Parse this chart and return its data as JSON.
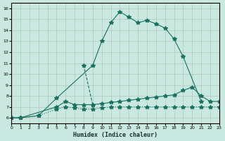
{
  "xlabel": "Humidex (Indice chaleur)",
  "bg_color": "#c8e8e0",
  "grid_color": "#b0c8c0",
  "line_color": "#1a7060",
  "xlim": [
    0,
    23
  ],
  "ylim": [
    5.5,
    16.5
  ],
  "xticks": [
    0,
    1,
    2,
    3,
    4,
    5,
    6,
    7,
    8,
    9,
    10,
    11,
    12,
    13,
    14,
    15,
    16,
    17,
    18,
    19,
    20,
    21,
    22,
    23
  ],
  "yticks": [
    6,
    7,
    8,
    9,
    10,
    11,
    12,
    13,
    14,
    15,
    16
  ],
  "line1_x": [
    0,
    1,
    3,
    5,
    9,
    10,
    11,
    12,
    13,
    14,
    15,
    16,
    17,
    18,
    19,
    21
  ],
  "line1_y": [
    6.0,
    6.0,
    6.2,
    7.8,
    10.8,
    13.0,
    14.7,
    15.7,
    15.2,
    14.7,
    14.9,
    14.6,
    14.2,
    13.2,
    11.6,
    7.5
  ],
  "line2_x": [
    0,
    1,
    5,
    6,
    7,
    8,
    9,
    10,
    11,
    12,
    13,
    14,
    15,
    16,
    17,
    18,
    19,
    20,
    21,
    22,
    23
  ],
  "line2_y": [
    6.0,
    6.0,
    7.0,
    7.5,
    7.2,
    7.2,
    7.2,
    7.3,
    7.4,
    7.5,
    7.6,
    7.7,
    7.8,
    7.9,
    8.0,
    8.1,
    8.5,
    8.8,
    8.0,
    7.5,
    7.5
  ],
  "line3_x": [
    0,
    1,
    3,
    5,
    6,
    7,
    8,
    9,
    10,
    11,
    12,
    13,
    14,
    15,
    16,
    17,
    18,
    19,
    20,
    21,
    22,
    23
  ],
  "line3_y": [
    6.0,
    6.0,
    6.2,
    6.8,
    7.0,
    6.9,
    6.8,
    6.8,
    6.9,
    7.0,
    7.0,
    7.0,
    7.0,
    7.0,
    7.0,
    7.0,
    7.0,
    7.0,
    7.0,
    7.0,
    7.0,
    7.0
  ],
  "line4_x": [
    8,
    9
  ],
  "line4_y": [
    10.8,
    7.2
  ]
}
